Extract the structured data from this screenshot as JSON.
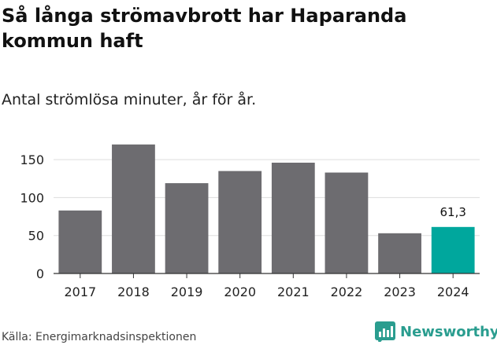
{
  "chart_data": {
    "type": "bar",
    "title": "Så långa strömavbrott har Haparanda kommun haft",
    "subtitle": "Antal strömlösa minuter, år för år.",
    "categories": [
      "2017",
      "2018",
      "2019",
      "2020",
      "2021",
      "2022",
      "2023",
      "2024"
    ],
    "values": [
      83,
      170,
      119,
      135,
      146,
      133,
      53,
      61.3
    ],
    "highlight_index": 7,
    "highlight_label": "61,3",
    "y_ticks": [
      0,
      50,
      100,
      150
    ],
    "ylim": [
      0,
      175
    ],
    "xlabel": "",
    "ylabel": "",
    "colors": {
      "bar": "#6d6c70",
      "highlight": "#00a79d",
      "grid": "#dddddd",
      "axis": "#333333"
    }
  },
  "footer": {
    "source": "Källa: Energimarknadsinspektionen",
    "brand": "Newsworthy",
    "brand_icon": "chart-icon",
    "brand_color": "#2a9d8f"
  }
}
